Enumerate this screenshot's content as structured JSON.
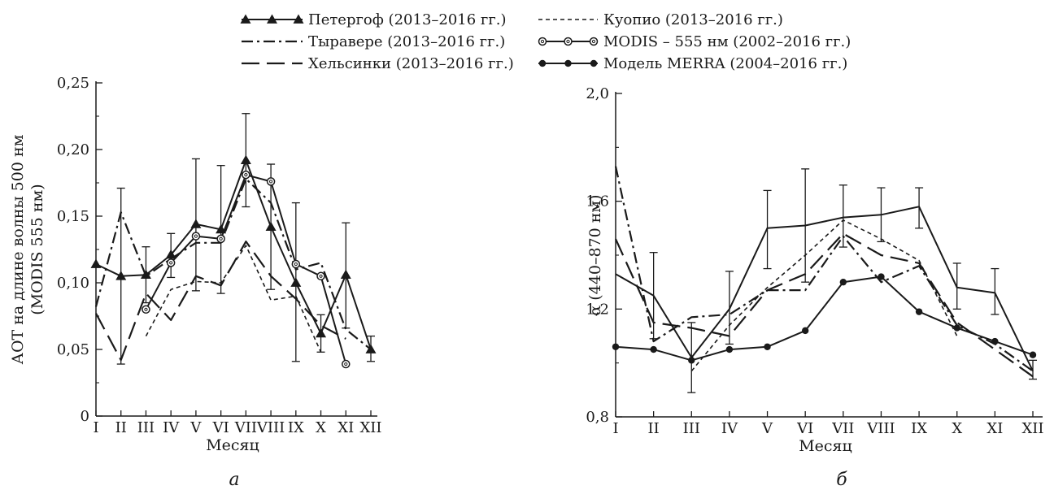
{
  "legend": [
    {
      "label": "Петергоф (2013–2016 гг.)",
      "style": "solid-triangle"
    },
    {
      "label": "Тыравере (2013–2016 гг.)",
      "style": "dashdot"
    },
    {
      "label": "Хельсинки (2013–2016 гг.)",
      "style": "longdash"
    },
    {
      "label": "Куопио (2013–2016 гг.)",
      "style": "shortdash"
    },
    {
      "label": "MODIS – 555 нм (2002–2016 гг.)",
      "style": "solid-opencircle"
    },
    {
      "label": "Модель MERRA (2004–2016 гг.)",
      "style": "solid-filledcircle"
    }
  ],
  "chart_data": [
    {
      "type": "line",
      "panel_label": "а",
      "xlabel": "Месяц",
      "ylabel_line1": "АОТ на длине волны 500 нм",
      "ylabel_line2": "(MODIS 555 нм)",
      "categories": [
        "I",
        "II",
        "III",
        "IV",
        "V",
        "VI",
        "VII",
        "VIII",
        "IX",
        "X",
        "XI",
        "XII"
      ],
      "ylim": [
        0,
        0.25
      ],
      "yticks": [
        "0",
        "0,05",
        "0,10",
        "0,15",
        "0,20",
        "0,25"
      ],
      "series": [
        {
          "name": "Петергоф (2013–2016 гг.)",
          "style": "solid-triangle",
          "values": [
            0.114,
            0.105,
            0.106,
            0.121,
            0.144,
            0.14,
            0.192,
            0.142,
            0.1,
            0.062,
            0.106,
            0.05
          ],
          "err_low": [
            null,
            0.039,
            0.085,
            0.104,
            0.094,
            0.092,
            0.157,
            0.095,
            0.041,
            0.048,
            0.066,
            0.041
          ],
          "err_high": [
            null,
            0.171,
            0.127,
            0.137,
            0.193,
            0.188,
            0.227,
            0.189,
            0.16,
            0.076,
            0.145,
            0.06
          ]
        },
        {
          "name": "Тыравере (2013–2016 гг.)",
          "style": "dashdot",
          "values": [
            0.082,
            0.153,
            0.105,
            0.118,
            0.13,
            0.13,
            0.178,
            0.16,
            0.11,
            0.115,
            0.065,
            0.05
          ]
        },
        {
          "name": "Хельсинки (2013–2016 гг.)",
          "style": "longdash",
          "values": [
            0.077,
            0.042,
            0.092,
            0.072,
            0.105,
            0.098,
            0.131,
            0.105,
            0.088,
            0.068,
            0.058,
            null
          ]
        },
        {
          "name": "Куопио (2013–2016 гг.)",
          "style": "shortdash",
          "values": [
            null,
            null,
            0.06,
            0.095,
            0.101,
            0.1,
            0.128,
            0.087,
            0.09,
            0.048,
            null,
            null
          ]
        },
        {
          "name": "MODIS – 555 нм (2002–2016 гг.)",
          "style": "solid-opencircle",
          "values": [
            null,
            null,
            0.08,
            0.115,
            0.135,
            0.133,
            0.181,
            0.176,
            0.114,
            0.105,
            0.039,
            null
          ]
        }
      ]
    },
    {
      "type": "line",
      "panel_label": "б",
      "xlabel": "Месяц",
      "ylabel_line1": "α (440–870 нм)",
      "categories": [
        "I",
        "II",
        "III",
        "IV",
        "V",
        "VI",
        "VII",
        "VIII",
        "IX",
        "X",
        "XI",
        "XII"
      ],
      "ylim": [
        0.8,
        2.0
      ],
      "yticks": [
        "0,8",
        "1,2",
        "1,6",
        "2,0"
      ],
      "series": [
        {
          "name": "Петергоф (2013–2016 гг.)",
          "style": "solid-plain",
          "values": [
            1.33,
            1.25,
            1.02,
            1.2,
            1.5,
            1.51,
            1.54,
            1.55,
            1.58,
            1.28,
            1.26,
            0.97
          ],
          "err_low": [
            null,
            1.09,
            0.89,
            1.07,
            1.35,
            1.3,
            1.43,
            1.45,
            1.5,
            1.2,
            1.18,
            0.94
          ],
          "err_high": [
            null,
            1.41,
            1.15,
            1.34,
            1.64,
            1.72,
            1.66,
            1.65,
            1.65,
            1.37,
            1.35,
            1.01
          ]
        },
        {
          "name": "Тыравере (2013–2016 гг.)",
          "style": "dashdot",
          "values": [
            1.73,
            1.08,
            1.17,
            1.18,
            1.27,
            1.27,
            1.47,
            1.3,
            1.36,
            1.14,
            1.07,
            0.97
          ]
        },
        {
          "name": "Хельсинки (2013–2016 гг.)",
          "style": "longdash",
          "values": [
            1.46,
            1.15,
            1.13,
            1.1,
            1.27,
            1.33,
            1.48,
            1.4,
            1.37,
            1.15,
            1.05,
            0.95
          ]
        },
        {
          "name": "Куопио (2013–2016 гг.)",
          "style": "shortdash",
          "values": [
            null,
            null,
            0.97,
            1.14,
            1.28,
            1.4,
            1.53,
            1.46,
            1.38,
            1.1,
            null,
            null
          ]
        },
        {
          "name": "Модель MERRA (2004–2016 гг.)",
          "style": "solid-filledcircle",
          "values": [
            1.06,
            1.05,
            1.01,
            1.05,
            1.06,
            1.12,
            1.3,
            1.32,
            1.19,
            1.13,
            1.08,
            1.03
          ]
        }
      ]
    }
  ]
}
